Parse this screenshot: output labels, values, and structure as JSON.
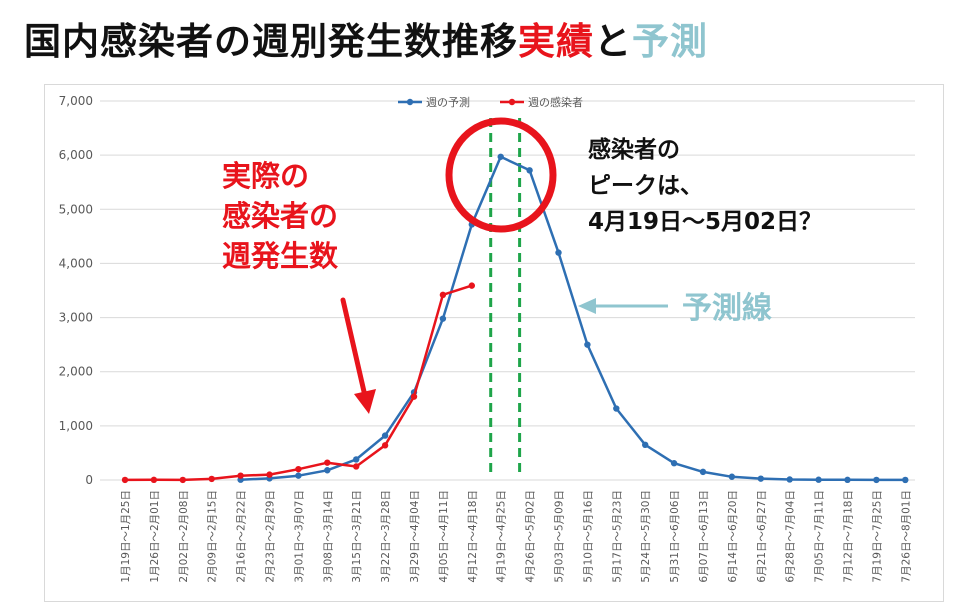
{
  "title": {
    "main": "国内感染者の週別発生数推移",
    "actual": "実績",
    "and": "と",
    "prediction": "予測"
  },
  "annotations": {
    "actual_label_lines": [
      "実際の",
      "感染者の",
      "週発生数"
    ],
    "peak_lines": [
      "感染者の",
      "ピークは、",
      "4月19日～5月02日？"
    ],
    "prediction_line_label": "予測線"
  },
  "colors": {
    "prediction": "#2e6fb3",
    "actual": "#e8141c",
    "peak_marker": "#1fa54a",
    "highlight_circle": "#e8141c",
    "prediction_text": "#8fc5cf",
    "grid": "#d9d9d9"
  },
  "chart_data": {
    "type": "line",
    "categories": [
      "1月19日～1月25日",
      "1月26日～2月01日",
      "2月02日～2月08日",
      "2月09日～2月15日",
      "2月16日～2月22日",
      "2月23日～2月29日",
      "3月01日～3月07日",
      "3月08日～3月14日",
      "3月15日～3月21日",
      "3月22日～3月28日",
      "3月29日～4月04日",
      "4月05日～4月11日",
      "4月12日～4月18日",
      "4月19日～4月25日",
      "4月26日～5月02日",
      "5月03日～5月09日",
      "5月10日～5月16日",
      "5月17日～5月23日",
      "5月24日～5月30日",
      "5月31日～6月06日",
      "6月07日～6月13日",
      "6月14日～6月20日",
      "6月21日～6月27日",
      "6月28日～7月04日",
      "7月05日～7月11日",
      "7月12日～7月18日",
      "7月19日～7月25日",
      "7月26日～8月01日"
    ],
    "series": [
      {
        "name": "週の予測",
        "color": "#2e6fb3",
        "values": [
          null,
          null,
          null,
          null,
          5,
          30,
          80,
          180,
          380,
          820,
          1620,
          2980,
          4720,
          5970,
          5720,
          4200,
          2500,
          1320,
          650,
          310,
          150,
          60,
          25,
          10,
          5,
          3,
          2,
          1
        ]
      },
      {
        "name": "週の感染者",
        "color": "#e8141c",
        "values": [
          2,
          3,
          2,
          20,
          80,
          100,
          200,
          320,
          250,
          640,
          1540,
          3420,
          3590,
          null,
          null,
          null,
          null,
          null,
          null,
          null,
          null,
          null,
          null,
          null,
          null,
          null,
          null,
          null
        ]
      }
    ],
    "yticks": [
      "0",
      "1,000",
      "2,000",
      "3,000",
      "4,000",
      "5,000",
      "6,000",
      "7,000"
    ],
    "ylim": [
      0,
      7000
    ],
    "grid": true,
    "legend_position": "top-center",
    "peak_markers": [
      "4月19日～4月25日",
      "4月26日～5月02日"
    ]
  }
}
